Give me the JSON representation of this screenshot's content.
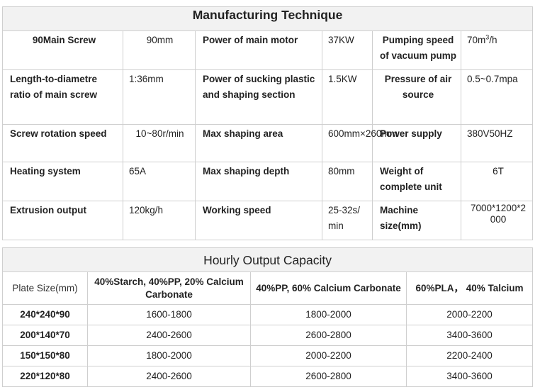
{
  "spec": {
    "title": "Manufacturing Technique",
    "rows": [
      [
        "90Main Screw",
        "90mm",
        "Power of main motor",
        "37KW",
        "Pumping speed of vacuum pump",
        "70m"
      ],
      [
        "Length-to-diametre ratio of main screw",
        "1:36mm",
        "Power of sucking plastic and shaping section",
        "1.5KW",
        "Pressure of air source",
        "0.5~0.7mpa"
      ],
      [
        "Screw rotation speed",
        "10~80r/min",
        "Max shaping area",
        "600mm×260mm",
        "Power supply",
        "380V50HZ"
      ],
      [
        "Heating system",
        "65A",
        "Max shaping depth",
        "80mm",
        "Weight of complete unit",
        "6T"
      ],
      [
        "Extrusion output",
        "120kg/h",
        "Working speed",
        "25-32s/min",
        "Machine size(mm)",
        "7000*1200*2000"
      ]
    ],
    "pump_unit_sup": "3",
    "pump_unit_rest": "/h"
  },
  "capacity": {
    "title": "Hourly Output Capacity",
    "headers": [
      "Plate Size(mm)",
      "40%Starch, 40%PP, 20% Calcium Carbonate",
      "40%PP, 60% Calcium Carbonate",
      "60%PLA， 40% Talcium"
    ],
    "rows": [
      [
        "240*240*90",
        "1600-1800",
        "1800-2000",
        "2000-2200"
      ],
      [
        "200*140*70",
        "2400-2600",
        "2600-2800",
        "3400-3600"
      ],
      [
        "150*150*80",
        "1800-2000",
        "2000-2200",
        "2200-2400"
      ],
      [
        "220*120*80",
        "2400-2600",
        "2600-2800",
        "3400-3600"
      ]
    ]
  }
}
